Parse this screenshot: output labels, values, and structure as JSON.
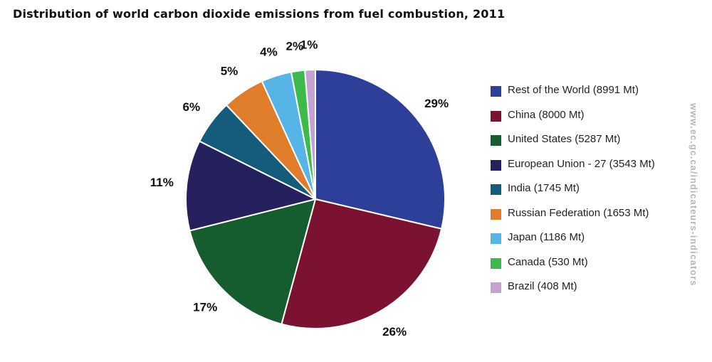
{
  "title": "Distribution of world carbon dioxide emissions from fuel combustion, 2011",
  "watermark": "www.ec.gc.ca/indicateurs-indicators",
  "chart_data": {
    "type": "pie",
    "title": "Distribution of world carbon dioxide emissions from fuel combustion, 2011",
    "legend_position": "right",
    "slices": [
      {
        "label": "Rest of the World (8991 Mt)",
        "value": 8991,
        "percent_label": "29%",
        "color": "#2e3f99"
      },
      {
        "label": "China (8000 Mt)",
        "value": 8000,
        "percent_label": "26%",
        "color": "#7a1230"
      },
      {
        "label": "United States (5287 Mt)",
        "value": 5287,
        "percent_label": "17%",
        "color": "#155c2e"
      },
      {
        "label": "European Union - 27 (3543 Mt)",
        "value": 3543,
        "percent_label": "11%",
        "color": "#26205e"
      },
      {
        "label": "India (1745 Mt)",
        "value": 1745,
        "percent_label": "6%",
        "color": "#155b7c"
      },
      {
        "label": "Russian Federation (1653 Mt)",
        "value": 1653,
        "percent_label": "5%",
        "color": "#e07d2a"
      },
      {
        "label": "Japan (1186 Mt)",
        "value": 1186,
        "percent_label": "4%",
        "color": "#56b4e6"
      },
      {
        "label": "Canada (530 Mt)",
        "value": 530,
        "percent_label": "2%",
        "color": "#3cbb4c"
      },
      {
        "label": "Brazil (408 Mt)",
        "value": 408,
        "percent_label": "1%",
        "color": "#c4a2d4"
      }
    ]
  }
}
